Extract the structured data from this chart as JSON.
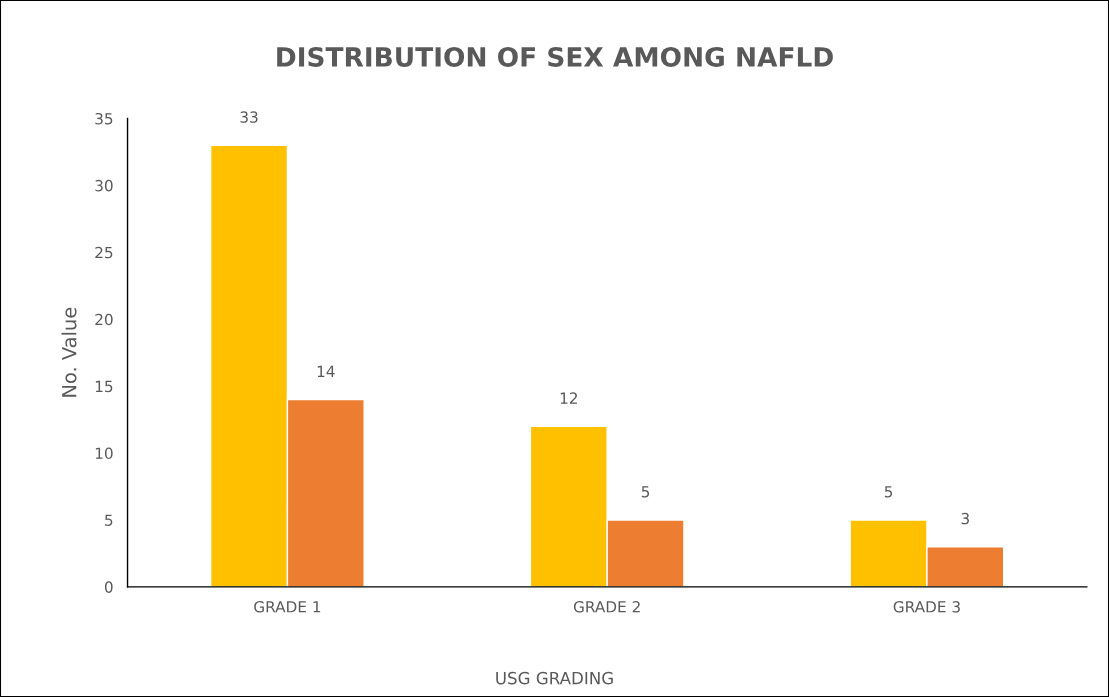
{
  "chart_data": {
    "type": "bar",
    "title": "DISTRIBUTION OF SEX AMONG NAFLD",
    "xlabel": "USG GRADING",
    "ylabel": "No. Value",
    "categories": [
      "GRADE 1",
      "GRADE 2",
      "GRADE 3"
    ],
    "series": [
      {
        "color": "#ffc000",
        "values": [
          33,
          12,
          5
        ]
      },
      {
        "color": "#ed7d31",
        "values": [
          14,
          5,
          3
        ]
      }
    ],
    "ylim": [
      0,
      35
    ],
    "yticks": [
      0,
      5,
      10,
      15,
      20,
      25,
      30,
      35
    ],
    "grid": false,
    "legend": false,
    "data_labels": true
  }
}
